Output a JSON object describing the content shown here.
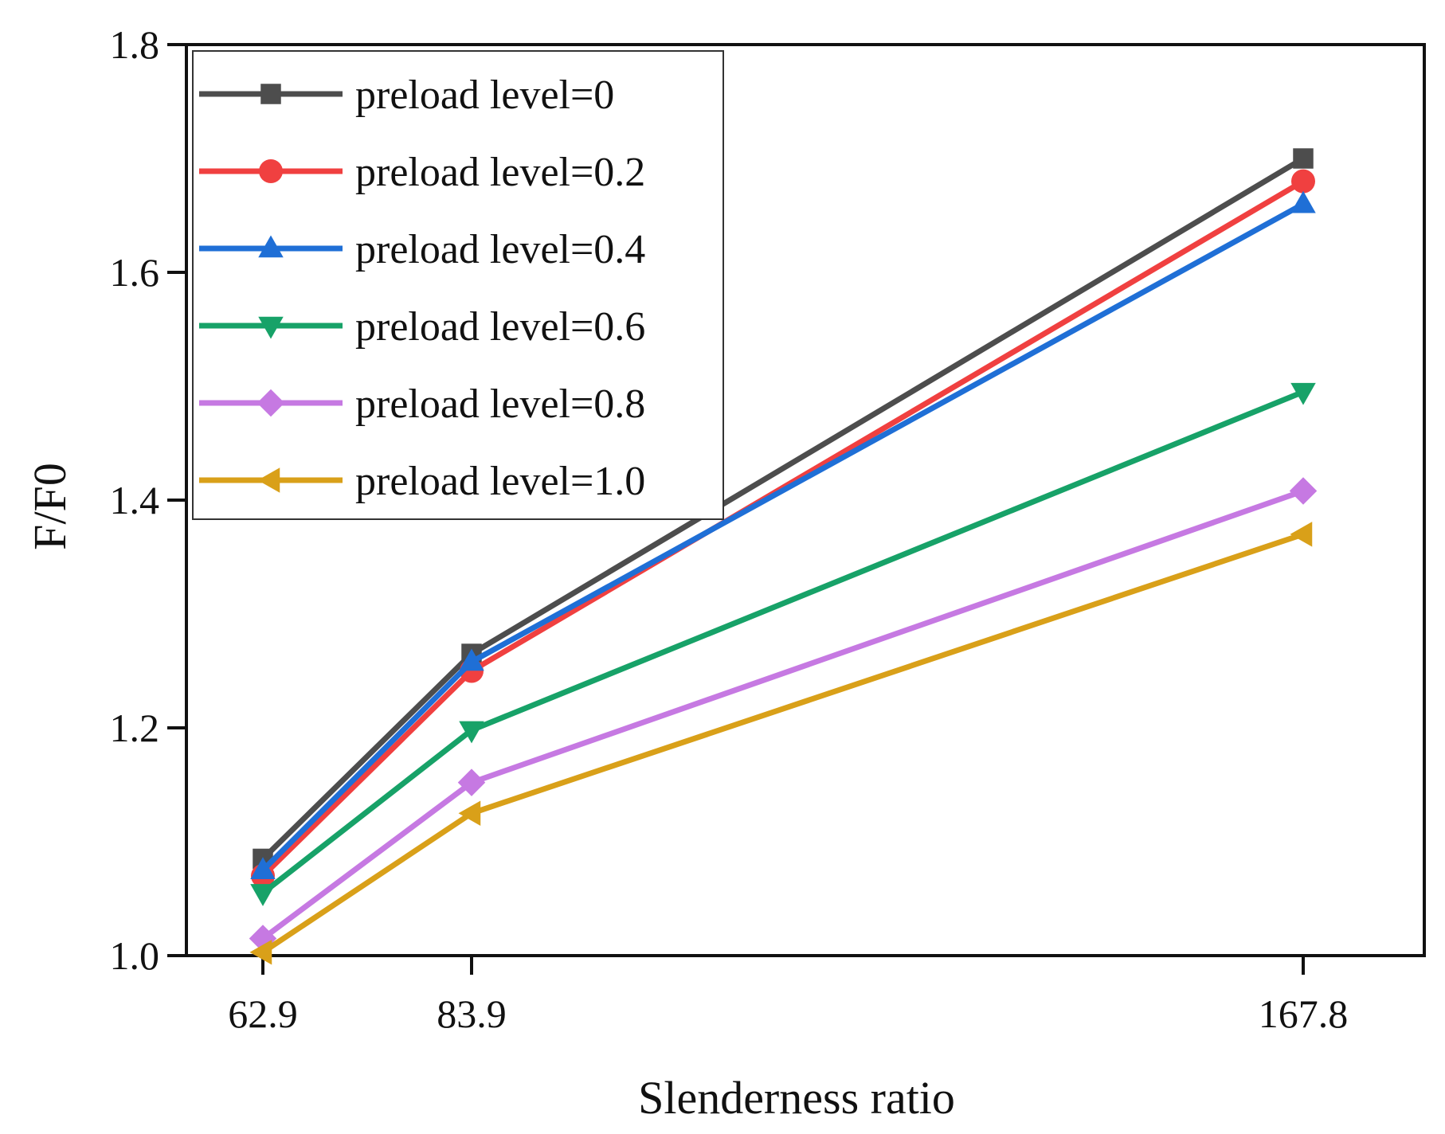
{
  "chart_data": {
    "type": "line",
    "title": "",
    "xlabel": "Slenderness ratio",
    "ylabel": "F/F0",
    "x": [
      62.9,
      83.9,
      167.8
    ],
    "x_tick_labels": [
      "62.9",
      "83.9",
      "167.8"
    ],
    "x_scale": "categorical-positioned",
    "ylim": [
      1.0,
      1.8
    ],
    "y_ticks": [
      1.0,
      1.2,
      1.4,
      1.6,
      1.8
    ],
    "y_tick_labels": [
      "1.0",
      "1.2",
      "1.4",
      "1.6",
      "1.8"
    ],
    "grid": false,
    "legend_position": "top-left",
    "series": [
      {
        "name": "preload level=0",
        "values": [
          1.085,
          1.265,
          1.7
        ],
        "color": "#4d4d4d",
        "marker": "square"
      },
      {
        "name": "preload level=0.2",
        "values": [
          1.07,
          1.25,
          1.68
        ],
        "color": "#f04040",
        "marker": "circle"
      },
      {
        "name": "preload level=0.4",
        "values": [
          1.075,
          1.258,
          1.66
        ],
        "color": "#1f6fd6",
        "marker": "triangle-up"
      },
      {
        "name": "preload level=0.6",
        "values": [
          1.055,
          1.198,
          1.495
        ],
        "color": "#17a268",
        "marker": "triangle-down"
      },
      {
        "name": "preload level=0.8",
        "values": [
          1.015,
          1.152,
          1.408
        ],
        "color": "#c679e2",
        "marker": "diamond"
      },
      {
        "name": "preload level=1.0",
        "values": [
          1.003,
          1.125,
          1.37
        ],
        "color": "#d9a019",
        "marker": "triangle-left"
      }
    ]
  }
}
